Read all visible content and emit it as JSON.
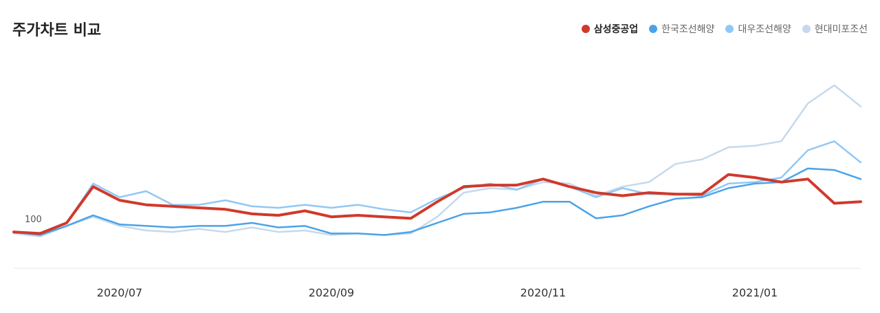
{
  "chart_data": {
    "type": "line",
    "title": "주가차트 비교",
    "categories": [
      null,
      null,
      null,
      null,
      "2020/07",
      null,
      null,
      null,
      null,
      null,
      null,
      null,
      "2020/09",
      null,
      null,
      null,
      null,
      null,
      null,
      null,
      "2020/11",
      null,
      null,
      null,
      null,
      null,
      null,
      null,
      "2021/01",
      null,
      null,
      null,
      null
    ],
    "ylim": [
      76,
      217
    ],
    "yticks": [
      100
    ],
    "series": [
      {
        "name": "삼성중공업",
        "color": "#d0392b",
        "values": [
          100,
          99,
          106,
          130,
          121,
          118,
          117,
          116,
          115,
          112,
          111,
          114,
          110,
          111,
          110,
          109,
          120,
          130,
          131,
          131,
          135,
          130,
          126,
          124,
          126,
          125,
          125,
          138,
          136,
          133,
          135,
          119,
          120
        ]
      },
      {
        "name": "한국조선해양",
        "color": "#4aa3e8",
        "values": [
          100,
          98,
          104,
          111,
          105,
          104,
          103,
          104,
          104,
          106,
          103,
          104,
          99,
          99,
          98,
          100,
          106,
          112,
          113,
          116,
          120,
          120,
          109,
          111,
          117,
          122,
          123,
          129,
          132,
          133,
          142,
          141,
          135
        ]
      },
      {
        "name": "대우조선해양",
        "color": "#90c8f5",
        "values": [
          100,
          99,
          106,
          132,
          123,
          127,
          118,
          118,
          121,
          117,
          116,
          118,
          116,
          118,
          115,
          113,
          122,
          129,
          132,
          128,
          135,
          130,
          123,
          129,
          125,
          125,
          124,
          132,
          133,
          136,
          154,
          160,
          146
        ]
      },
      {
        "name": "현대미포조선",
        "color": "#c5d9ec",
        "values": [
          99,
          97,
          104,
          110,
          104,
          101,
          100,
          102,
          100,
          103,
          100,
          101,
          98,
          99,
          98,
          99,
          110,
          126,
          129,
          128,
          133,
          132,
          124,
          130,
          133,
          145,
          148,
          156,
          157,
          160,
          185,
          197,
          183
        ]
      }
    ]
  }
}
